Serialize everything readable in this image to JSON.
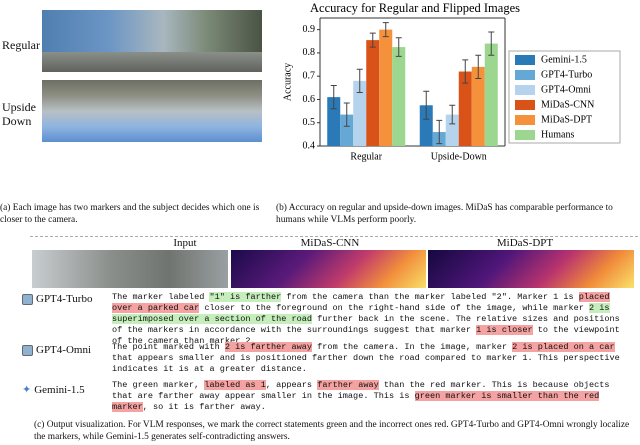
{
  "panel_a": {
    "labels": [
      "Regular",
      "Upside Down"
    ],
    "caption": "(a) Each image has two markers and the subject decides which one is closer to the camera."
  },
  "chart_data": {
    "type": "bar",
    "title": "Accuracy for Regular and Flipped Images",
    "y_label": "Accuracy",
    "categories": [
      "Regular",
      "Upside-Down"
    ],
    "series": [
      {
        "name": "Gemini-1.5",
        "color": "#2a7ab8",
        "values": [
          0.61,
          0.575
        ],
        "errors": [
          0.05,
          0.06
        ]
      },
      {
        "name": "GPT4-Turbo",
        "color": "#65a8d6",
        "values": [
          0.535,
          0.46
        ],
        "errors": [
          0.05,
          0.05
        ]
      },
      {
        "name": "GPT4-Omni",
        "color": "#b5d3ec",
        "values": [
          0.68,
          0.535
        ],
        "errors": [
          0.05,
          0.04
        ]
      },
      {
        "name": "MiDaS-CNN",
        "color": "#d95319",
        "values": [
          0.855,
          0.72
        ],
        "errors": [
          0.03,
          0.05
        ]
      },
      {
        "name": "MiDaS-DPT",
        "color": "#f5913b",
        "values": [
          0.9,
          0.74
        ],
        "errors": [
          0.03,
          0.05
        ]
      },
      {
        "name": "Humans",
        "color": "#9cd68f",
        "values": [
          0.825,
          0.84
        ],
        "errors": [
          0.04,
          0.05
        ]
      }
    ],
    "ylim": [
      0.4,
      0.95
    ],
    "yticks": [
      0.4,
      0.5,
      0.6,
      0.7,
      0.8,
      0.9
    ],
    "grid": false,
    "legend": "right"
  },
  "panel_b": {
    "caption": "(b) Accuracy on regular and upside-down images. MiDaS has comparable performance to humans while VLMs perform poorly."
  },
  "panel_c": {
    "headers": [
      "Input",
      "MiDaS-CNN",
      "MiDaS-DPT"
    ],
    "responses": [
      {
        "model": "GPT4-Turbo",
        "segments": [
          {
            "text": "The marker labeled "
          },
          {
            "text": "\"1\" is farther",
            "mark": "green"
          },
          {
            "text": " from the camera than the marker labeled \"2\". Marker 1 is "
          },
          {
            "text": "placed over a parked car",
            "mark": "red"
          },
          {
            "text": " closer to the foreground on the right-hand side of the image, while marker "
          },
          {
            "text": "2 is superimposed over a section of the road",
            "mark": "green"
          },
          {
            "text": " further back in the scene. The relative sizes and positions of the markers in accordance with the surroundings suggest that marker "
          },
          {
            "text": "1 is closer",
            "mark": "red"
          },
          {
            "text": " to the viewpoint of the camera than marker 2."
          }
        ]
      },
      {
        "model": "GPT4-Omni",
        "segments": [
          {
            "text": "The point marked with "
          },
          {
            "text": "2 is farther away",
            "mark": "red"
          },
          {
            "text": " from the camera. In the image, marker "
          },
          {
            "text": "2 is placed on a car",
            "mark": "red"
          },
          {
            "text": " that appears smaller and is positioned farther down the road compared to marker 1. This perspective indicates it is at a greater distance."
          }
        ]
      },
      {
        "model": "Gemini-1.5",
        "segments": [
          {
            "text": "The green marker, "
          },
          {
            "text": "labeled as 1",
            "mark": "red"
          },
          {
            "text": ", appears "
          },
          {
            "text": "farther away",
            "mark": "red"
          },
          {
            "text": " than the red marker. This is because objects that are farther away appear smaller in the image. This is "
          },
          {
            "text": "green marker is smaller than the red marker",
            "mark": "red"
          },
          {
            "text": ", so it is farther away."
          }
        ]
      }
    ],
    "caption": "(c) Output visualization. For VLM responses, we mark the correct statements green and the incorrect ones red. GPT4-Turbo and GPT4-Omni wrongly localize the markers, while Gemini-1.5 generates self-contradicting answers."
  }
}
